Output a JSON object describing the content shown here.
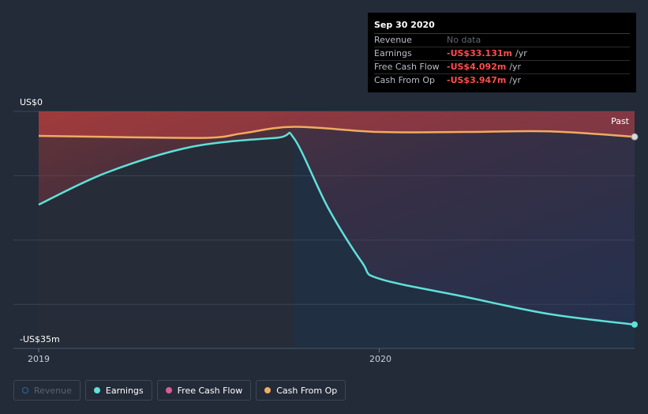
{
  "chart_data": {
    "type": "line",
    "y_axis": {
      "top_label": "US$0",
      "bottom_label": "-US$35m",
      "ylim": [
        -35,
        0
      ],
      "grid": true
    },
    "x_axis": {
      "ticks": [
        {
          "label": "2019",
          "x": 2019.0
        },
        {
          "label": "2020",
          "x": 2020.0
        }
      ],
      "xlim": [
        2019.0,
        2020.75
      ]
    },
    "past_label": "Past",
    "series": [
      {
        "name": "Earnings",
        "color": "#5fe0d8",
        "x": [
          2019.0,
          2019.2,
          2019.45,
          2019.7,
          2019.75,
          2019.85,
          2019.95,
          2020.0,
          2020.25,
          2020.5,
          2020.75
        ],
        "y": [
          -14.5,
          -9.5,
          -5.5,
          -4.1,
          -4.2,
          -15.0,
          -23.5,
          -26.0,
          -28.8,
          -31.5,
          -33.131
        ]
      },
      {
        "name": "Cash From Op",
        "color": "#f0ab60",
        "x": [
          2019.0,
          2019.25,
          2019.5,
          2019.6,
          2019.75,
          2020.0,
          2020.25,
          2020.5,
          2020.75
        ],
        "y": [
          -3.8,
          -4.0,
          -4.1,
          -3.4,
          -2.4,
          -3.2,
          -3.2,
          -3.1,
          -3.947
        ]
      }
    ],
    "tooltip": {
      "title": "Sep 30 2020",
      "rows": [
        {
          "name": "Revenue",
          "value": "No data",
          "unit": "",
          "nodata": true
        },
        {
          "name": "Earnings",
          "value": "-US$33.131m",
          "unit": "/yr",
          "nodata": false
        },
        {
          "name": "Free Cash Flow",
          "value": "-US$4.092m",
          "unit": "/yr",
          "nodata": false
        },
        {
          "name": "Cash From Op",
          "value": "-US$3.947m",
          "unit": "/yr",
          "nodata": false
        }
      ]
    },
    "legend": [
      {
        "name": "Revenue",
        "color": "#2f6b9e",
        "active": false
      },
      {
        "name": "Earnings",
        "color": "#5fe0d8",
        "active": true
      },
      {
        "name": "Free Cash Flow",
        "color": "#d95b9a",
        "active": true
      },
      {
        "name": "Cash From Op",
        "color": "#f0ab60",
        "active": true
      }
    ]
  }
}
